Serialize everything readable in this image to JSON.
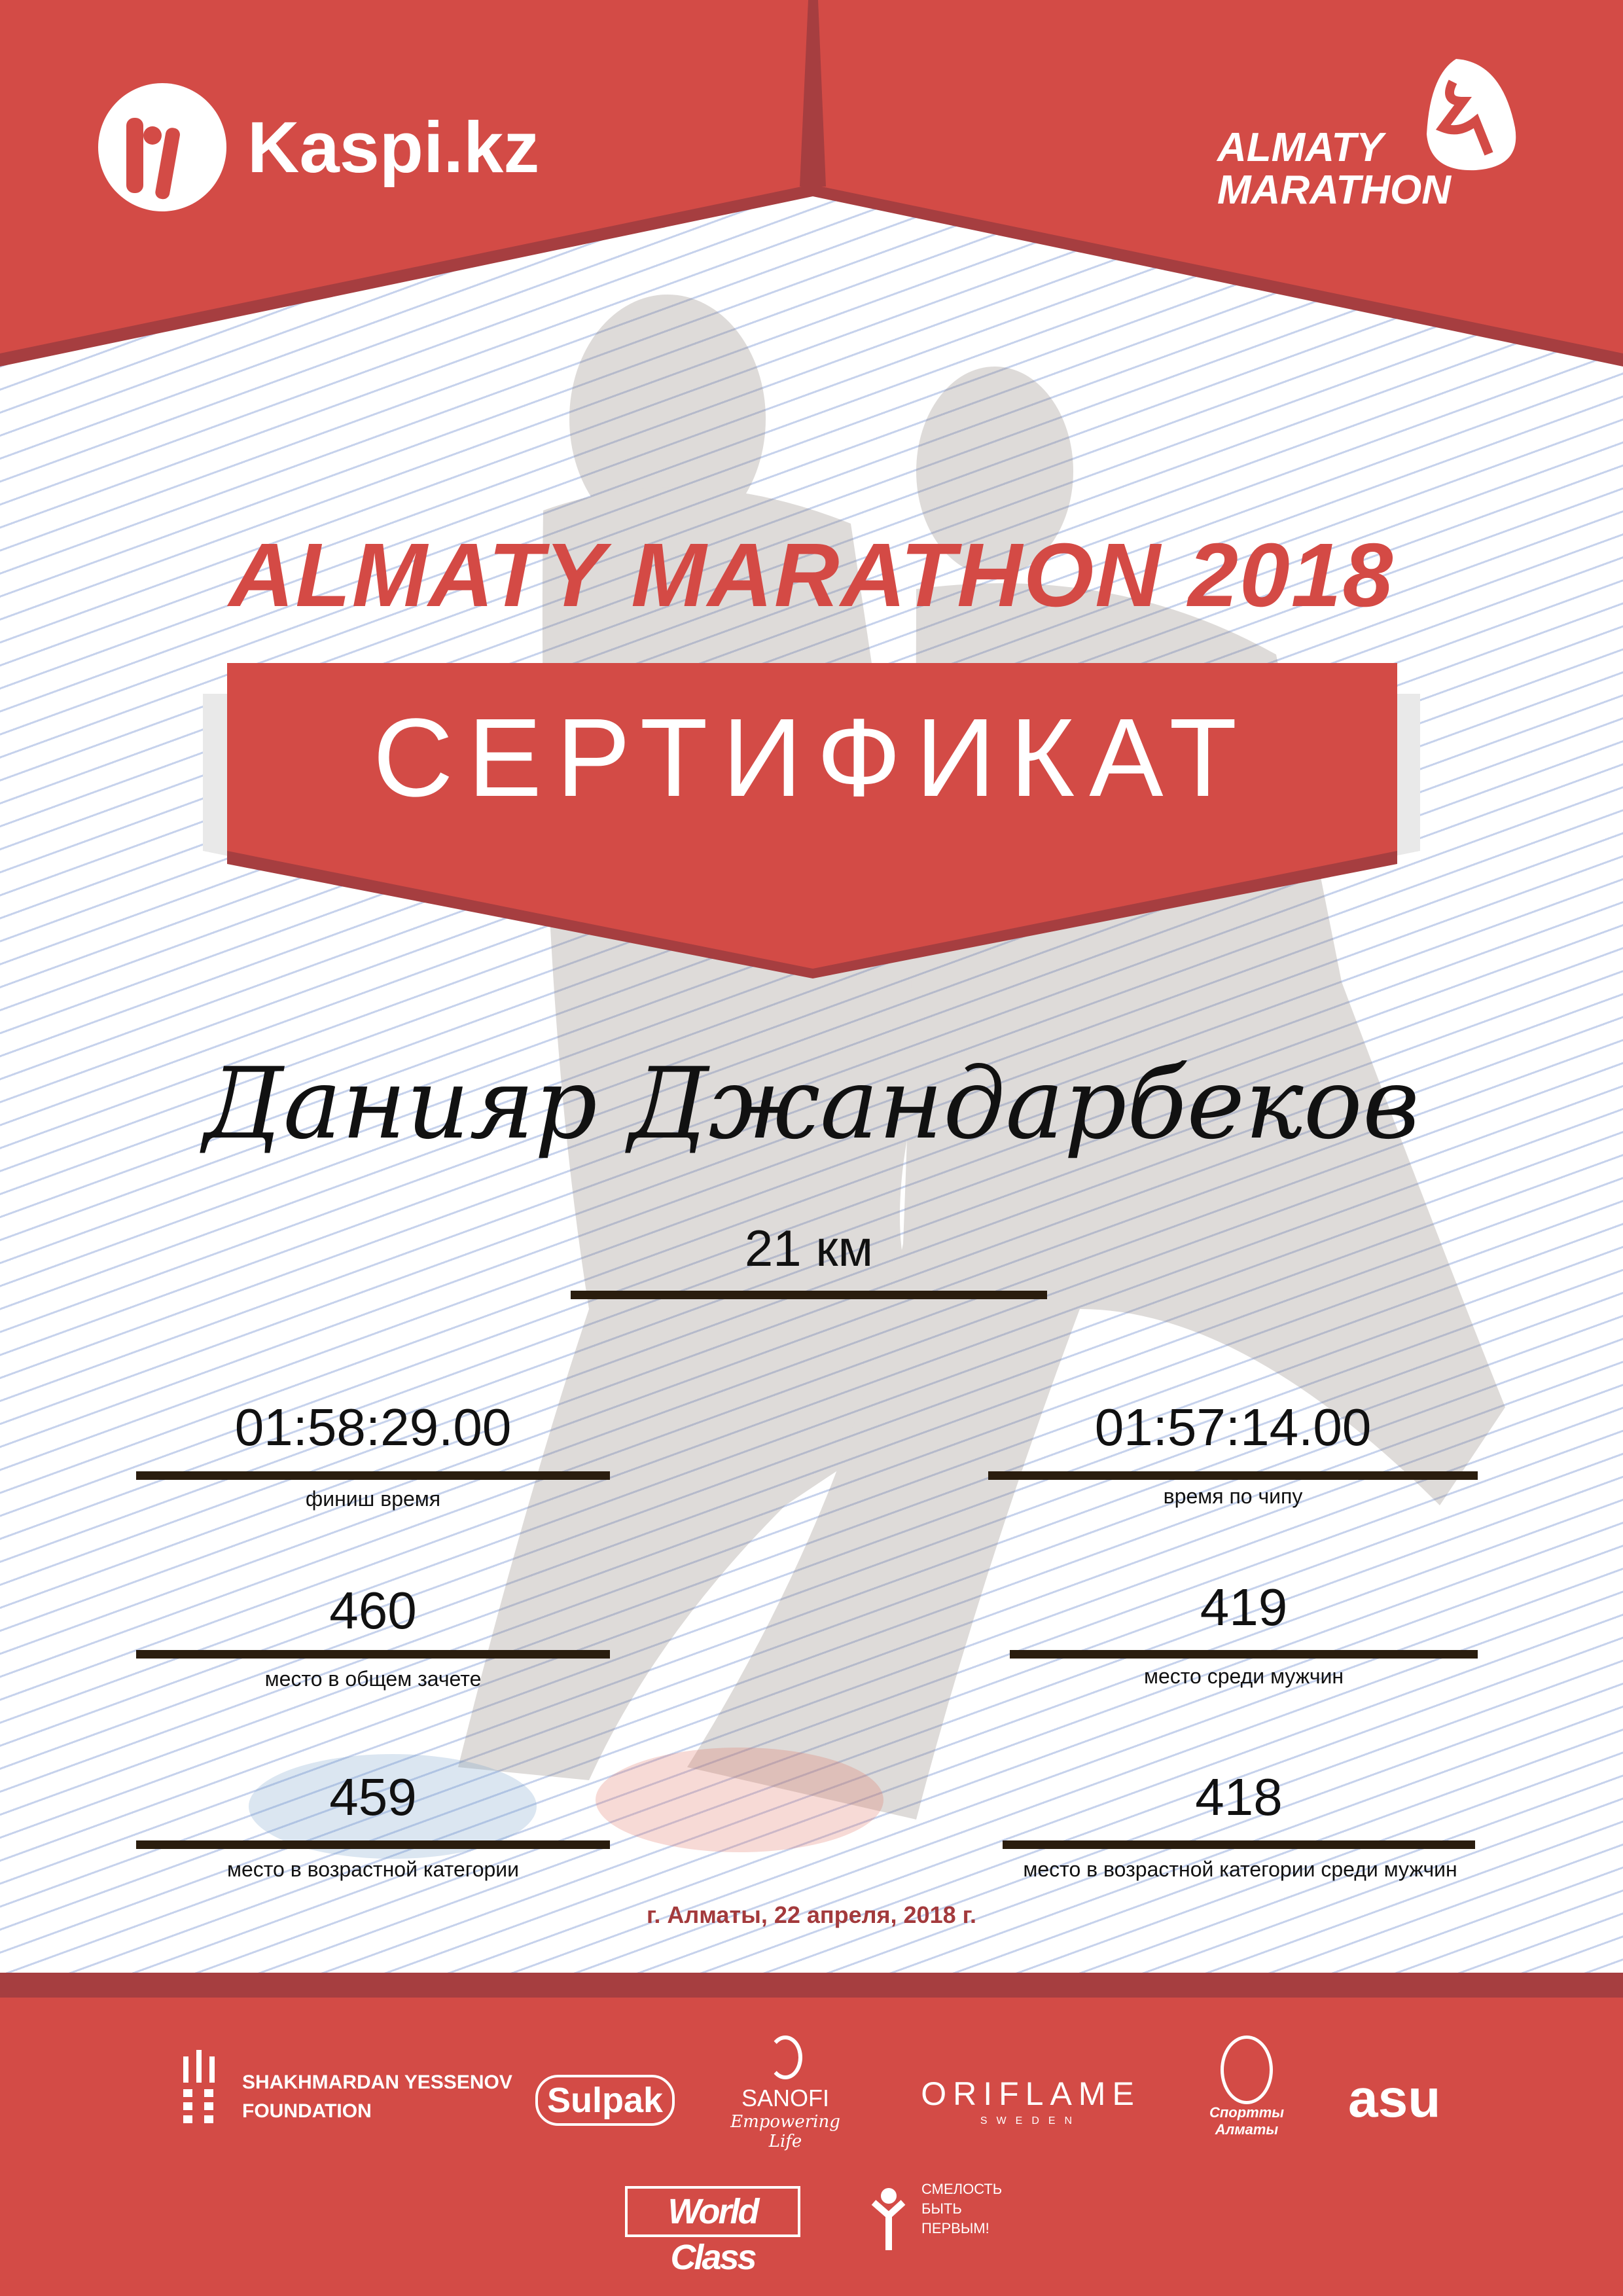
{
  "header": {
    "sponsor_logo": "Kaspi.kz",
    "event_logo_line1": "ALMATY",
    "event_logo_line2": "MARATHON"
  },
  "title": "ALMATY MARATHON 2018",
  "certificate_label": "СЕРТИФИКАТ",
  "participant_name": "Данияр Джандарбеков",
  "distance": "21 км",
  "results": {
    "finish_time": {
      "value": "01:58:29.00",
      "label": "финиш время"
    },
    "chip_time": {
      "value": "01:57:14.00",
      "label": "время по чипу"
    },
    "overall_place": {
      "value": "460",
      "label": "место в общем зачете"
    },
    "gender_place": {
      "value": "419",
      "label": "место среди мужчин"
    },
    "age_place": {
      "value": "459",
      "label": "место в возрастной категории"
    },
    "age_gender_place": {
      "value": "418",
      "label": "место в возрастной категории среди мужчин"
    }
  },
  "date_line": "г. Алматы, 22 апреля, 2018 г.",
  "partners": {
    "yessenov_line1": "SHAKHMARDAN YESSENOV",
    "yessenov_line2": "FOUNDATION",
    "sulpak": "Sulpak",
    "sanofi": "SANOFI",
    "sanofi_tagline": "Empowering Life",
    "oriflame": "ORIFLAME",
    "oriflame_sub": "SWEDEN",
    "sport_almaty": "Спортты Алматы",
    "asu": "asu",
    "worldclass": "World Class",
    "fund_line1": "СМЕЛОСТЬ",
    "fund_line2": "БЫТЬ",
    "fund_line3": "ПЕРВЫМ!"
  },
  "colors": {
    "brand_red": "#d34b46",
    "dark_red": "#a63e40",
    "line_dark": "#2a1d0e",
    "date_red": "#a33a3c"
  }
}
